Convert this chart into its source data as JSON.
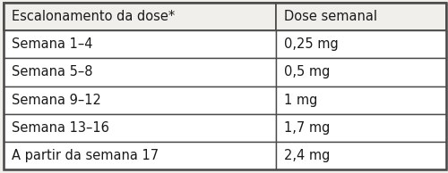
{
  "headers": [
    "Escalonamento da dose*",
    "Dose semanal"
  ],
  "rows": [
    [
      "Semana 1–4",
      "0,25 mg"
    ],
    [
      "Semana 5–8",
      "0,5 mg"
    ],
    [
      "Semana 9–12",
      "1 mg"
    ],
    [
      "Semana 13–16",
      "1,7 mg"
    ],
    [
      "A partir da semana 17",
      "2,4 mg"
    ]
  ],
  "bg_color": "#f0efeb",
  "border_color": "#4a4a4a",
  "text_color": "#1a1a1a",
  "cell_bg": "#ffffff",
  "col_split": 0.615,
  "font_size": 10.5,
  "header_font_size": 10.5,
  "figsize": [
    5.0,
    1.94
  ],
  "dpi": 100
}
